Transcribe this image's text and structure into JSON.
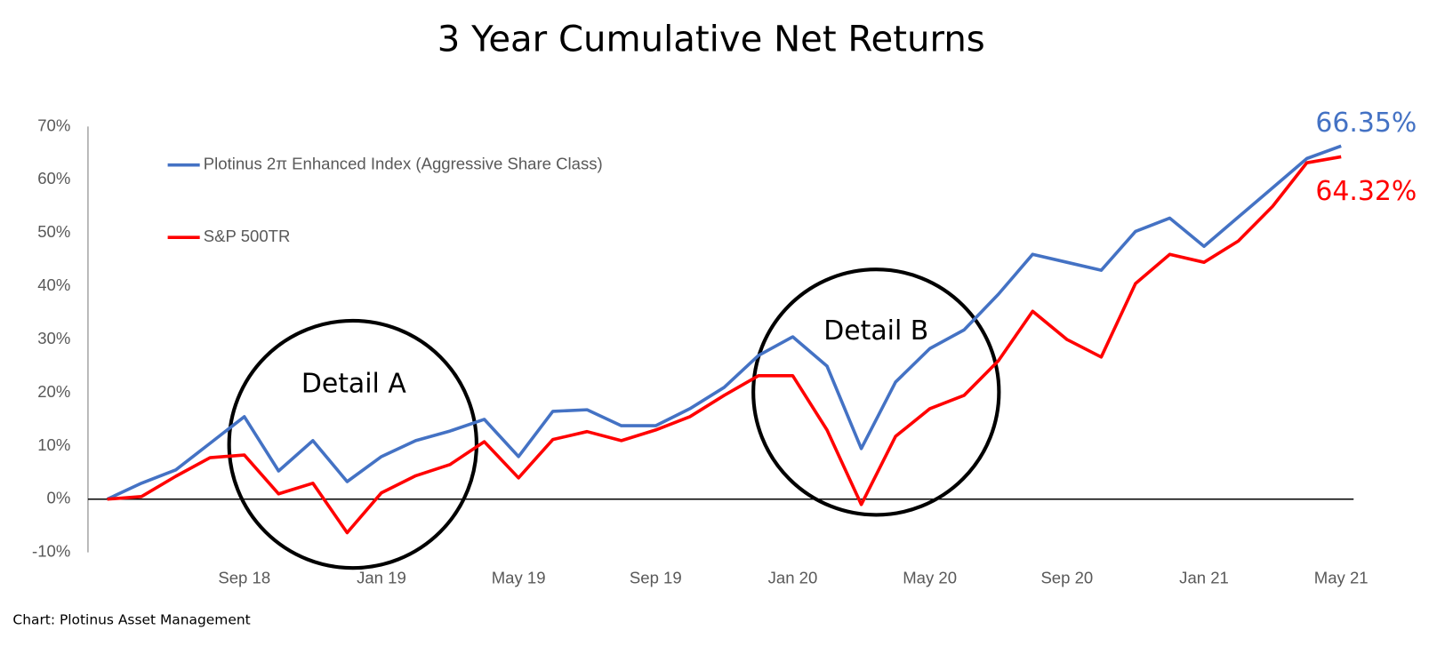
{
  "chart_data": {
    "type": "line",
    "title": "3 Year Cumulative Net Returns",
    "source": "Chart: Plotinus Asset Management",
    "categories": [
      null,
      null,
      null,
      null,
      "Sep 18",
      null,
      null,
      null,
      "Jan 19",
      null,
      null,
      null,
      "May 19",
      null,
      null,
      null,
      "Sep 19",
      null,
      null,
      null,
      "Jan 20",
      null,
      null,
      null,
      "May 20",
      null,
      null,
      null,
      "Sep 20",
      null,
      null,
      null,
      "Jan 21",
      null,
      null,
      null,
      "May 21"
    ],
    "series": [
      {
        "name": "Plotinus 2π Enhanced Index (Aggressive Share Class)",
        "color": "#4472c4",
        "values": [
          0,
          3,
          5.5,
          10.5,
          15.5,
          5.3,
          11,
          3.3,
          8,
          11,
          12.8,
          15,
          8,
          16.5,
          16.8,
          13.8,
          13.8,
          17,
          21,
          27,
          30.5,
          25,
          9.5,
          22,
          28.3,
          31.8,
          38.5,
          46,
          44.5,
          43,
          50.3,
          52.8,
          47.5,
          53,
          58.5,
          64,
          66.35
        ],
        "value_labels": [
          null,
          null,
          null,
          null,
          null,
          null,
          null,
          null,
          null,
          null,
          null,
          null,
          null,
          null,
          null,
          null,
          null,
          null,
          null,
          null,
          null,
          null,
          null,
          null,
          null,
          null,
          null,
          null,
          null,
          null,
          null,
          null,
          null,
          null,
          null,
          null,
          "66.35%"
        ]
      },
      {
        "name": "S&P 500TR",
        "color": "#ff0000",
        "values": [
          0,
          0.5,
          4.3,
          7.8,
          8.3,
          1,
          3,
          -6.3,
          1.2,
          4.4,
          6.5,
          10.8,
          4,
          11.2,
          12.7,
          11,
          13,
          15.5,
          19.5,
          23.2,
          23.2,
          13,
          -1,
          11.8,
          17,
          19.5,
          26,
          35.3,
          30,
          26.7,
          40.5,
          46,
          44.5,
          48.5,
          55,
          63.2,
          64.32
        ],
        "value_labels": [
          null,
          null,
          null,
          null,
          null,
          null,
          null,
          null,
          null,
          null,
          null,
          null,
          null,
          null,
          null,
          null,
          null,
          null,
          null,
          null,
          null,
          null,
          null,
          null,
          null,
          null,
          null,
          null,
          null,
          null,
          null,
          null,
          null,
          null,
          null,
          null,
          "64.32%"
        ]
      }
    ],
    "ylim": [
      -10,
      70
    ],
    "yticks": [
      {
        "value": -10,
        "label": "-10%"
      },
      {
        "value": 0,
        "label": "0%"
      },
      {
        "value": 10,
        "label": "10%"
      },
      {
        "value": 20,
        "label": "20%"
      },
      {
        "value": 30,
        "label": "30%"
      },
      {
        "value": 40,
        "label": "40%"
      },
      {
        "value": 50,
        "label": "50%"
      },
      {
        "value": 60,
        "label": "60%"
      },
      {
        "value": 70,
        "label": "70%"
      }
    ],
    "grid": false,
    "legend": "top-left",
    "annotations": [
      "Detail A",
      "Detail B"
    ]
  }
}
